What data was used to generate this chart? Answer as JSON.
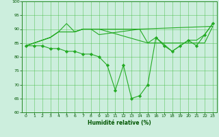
{
  "xlabel": "Humidité relative (%)",
  "bg_color": "#cceedd",
  "grid_color": "#44bb44",
  "line_color": "#22aa22",
  "marker_color": "#22aa22",
  "xlim": [
    -0.5,
    23.5
  ],
  "ylim": [
    60,
    100
  ],
  "yticks": [
    60,
    65,
    70,
    75,
    80,
    85,
    90,
    95,
    100
  ],
  "xticks": [
    0,
    1,
    2,
    3,
    4,
    5,
    6,
    7,
    8,
    9,
    10,
    11,
    12,
    13,
    14,
    15,
    16,
    17,
    18,
    19,
    20,
    21,
    22,
    23
  ],
  "series1_x": [
    0,
    1,
    3,
    4,
    5,
    6,
    7,
    8,
    9,
    14,
    23
  ],
  "series1_y": [
    84,
    85,
    87,
    89,
    92,
    89,
    90,
    90,
    88,
    90,
    91
  ],
  "series2_x": [
    0,
    3,
    4,
    5,
    6,
    7,
    8,
    9,
    10,
    14,
    15,
    16,
    17,
    18,
    19,
    20,
    21,
    22,
    23
  ],
  "series2_y": [
    84,
    87,
    89,
    89,
    89,
    90,
    90,
    90,
    90,
    90,
    85,
    85,
    85,
    85,
    85,
    85,
    85,
    85,
    91
  ],
  "series3_x": [
    0,
    1,
    3,
    4,
    5,
    6,
    7,
    8,
    9,
    15,
    16,
    18,
    19,
    20,
    21,
    22,
    23
  ],
  "series3_y": [
    84,
    85,
    87,
    89,
    89,
    89,
    90,
    90,
    90,
    85,
    87,
    82,
    84,
    86,
    86,
    88,
    92
  ],
  "series4_x": [
    0,
    1,
    2,
    3,
    4,
    5,
    6,
    7,
    8,
    9,
    10,
    11,
    12,
    13,
    14,
    15,
    16,
    17,
    18,
    19,
    20,
    21,
    22,
    23
  ],
  "series4_y": [
    84,
    84,
    84,
    83,
    83,
    82,
    82,
    81,
    81,
    80,
    77,
    68,
    77,
    65,
    66,
    70,
    87,
    84,
    82,
    84,
    86,
    84,
    88,
    92
  ]
}
